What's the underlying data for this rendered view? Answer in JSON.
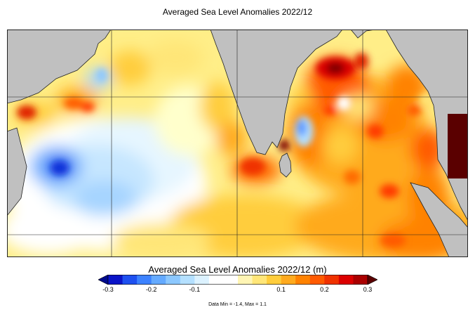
{
  "title": "Averaged Sea Level Anomalies 2022/12",
  "colorbar": {
    "title": "Averaged Sea Level Anomalies 2022/12 (m)",
    "min": -0.3,
    "max": 0.3,
    "ticks": [
      "-0.3",
      "-0.2",
      "-0.1",
      "0.1",
      "0.2",
      "0.3"
    ],
    "tick_values": [
      -0.3,
      -0.2,
      -0.1,
      0.1,
      0.2,
      0.3
    ],
    "colors": [
      "#0a14c8",
      "#1e50f0",
      "#3c82ff",
      "#64aaff",
      "#8cc8ff",
      "#b4e0ff",
      "#dcf2ff",
      "#ffffff",
      "#ffffff",
      "#fff5b4",
      "#ffe678",
      "#ffcd3c",
      "#ffaa1e",
      "#ff8200",
      "#ff5a00",
      "#f03200",
      "#dc0000",
      "#aa0000"
    ],
    "under_color": "#000a8c",
    "over_color": "#5a0000"
  },
  "footnote": "Data Min = -1.4, Max = 1.1",
  "map": {
    "land_color": "#c0c0c0",
    "grid_color": "#222222"
  }
}
